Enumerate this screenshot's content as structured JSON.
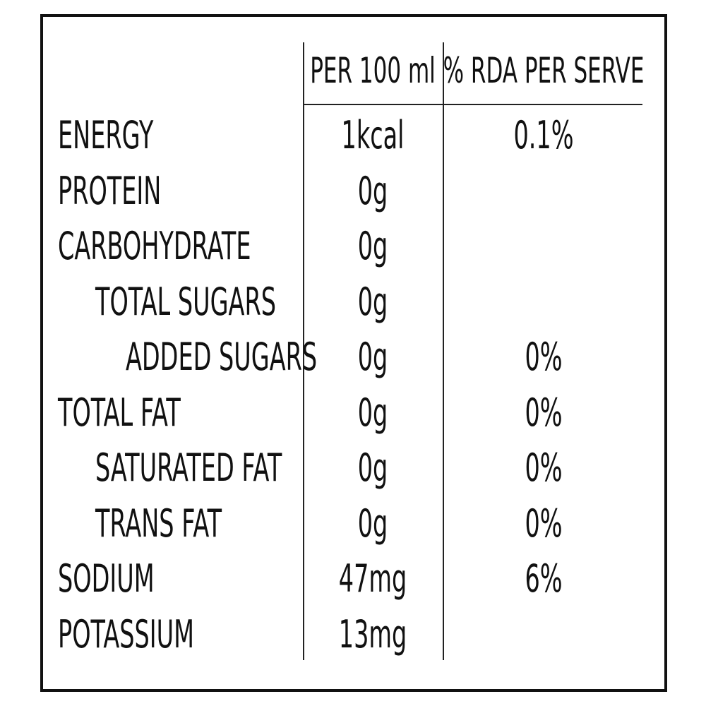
{
  "table": {
    "header": [
      "PER 100 ml",
      "% RDA PER SERVE"
    ],
    "rows": [
      {
        "label": "ENERGY",
        "per_100ml": "1kcal",
        "rda": "0.1%"
      },
      {
        "label": "PROTEIN",
        "per_100ml": "0g"
      },
      {
        "label": "CARBOHYDRATE",
        "per_100ml": "0g"
      },
      {
        "label": "TOTAL SUGARS",
        "per_100ml": "0g"
      },
      {
        "label": "ADDED SUGARS",
        "per_100ml": "0g",
        "rda": "0%"
      },
      {
        "label": "TOTAL FAT",
        "per_100ml": "0g",
        "rda": "0%"
      },
      {
        "label": "SATURATED FAT",
        "per_100ml": "0g",
        "rda": "0%"
      },
      {
        "label": "TRANS FAT",
        "per_100ml": "0g",
        "rda": "0%"
      },
      {
        "label": "SODIUM",
        "per_100ml": "47mg",
        "rda": "6%"
      },
      {
        "label": "POTASSIUM",
        "per_100ml": "13mg"
      }
    ]
  }
}
